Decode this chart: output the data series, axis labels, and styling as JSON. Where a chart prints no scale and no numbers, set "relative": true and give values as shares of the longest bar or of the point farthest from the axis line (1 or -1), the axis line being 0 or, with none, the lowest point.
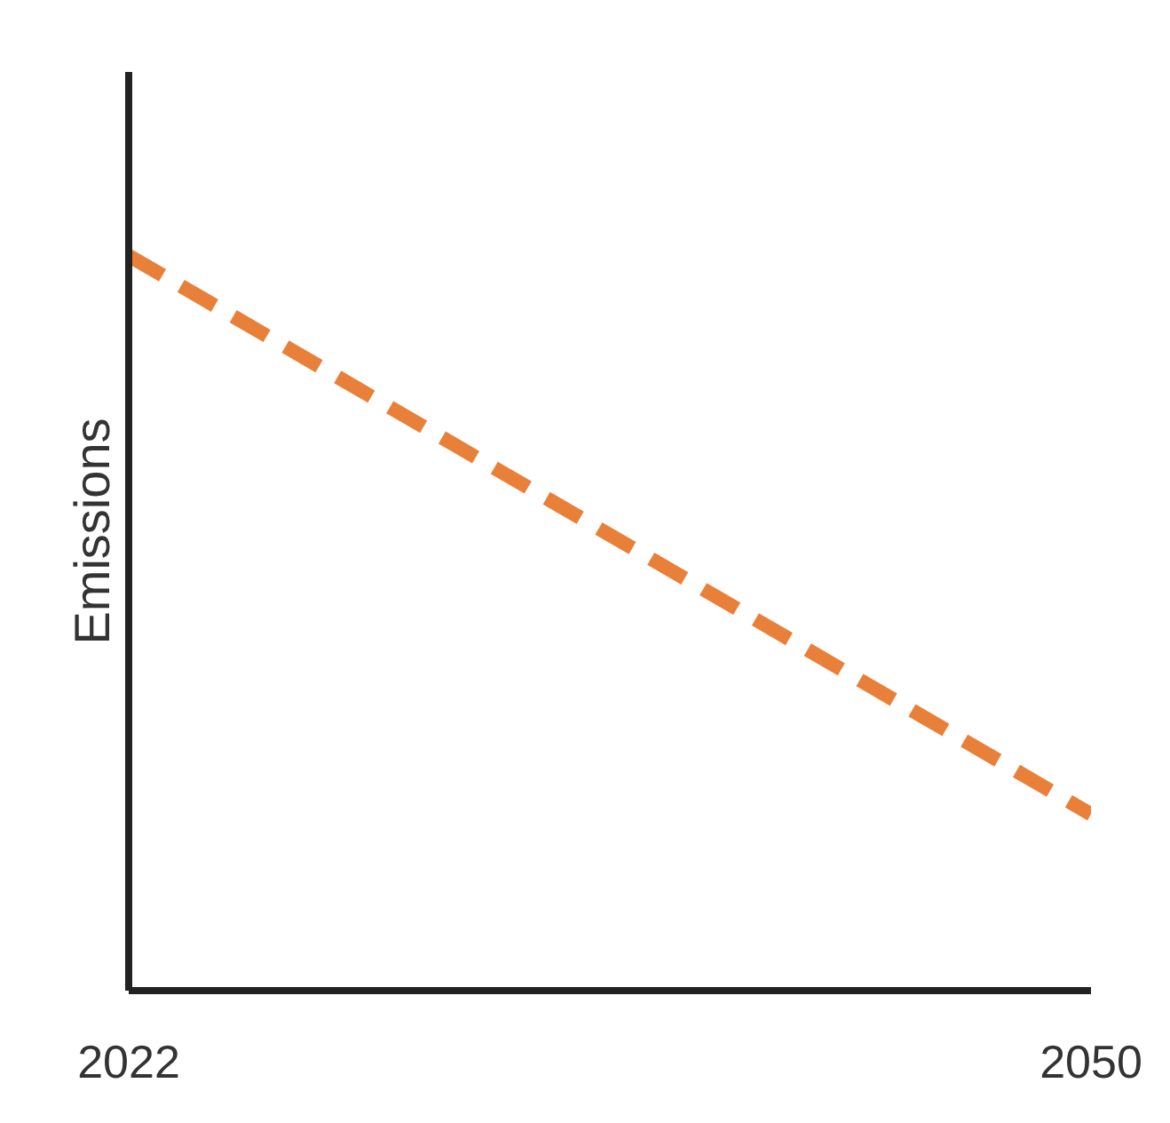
{
  "chart_data": {
    "type": "line",
    "ylabel": "Emissions",
    "relative": true,
    "line_style": "dashed",
    "x": [
      2022,
      2050
    ],
    "xlim": [
      2022,
      2050
    ],
    "xticks": [
      2022,
      2050
    ],
    "series": [
      {
        "color": "#e8803a",
        "values": [
          1,
          0.24
        ]
      }
    ]
  }
}
